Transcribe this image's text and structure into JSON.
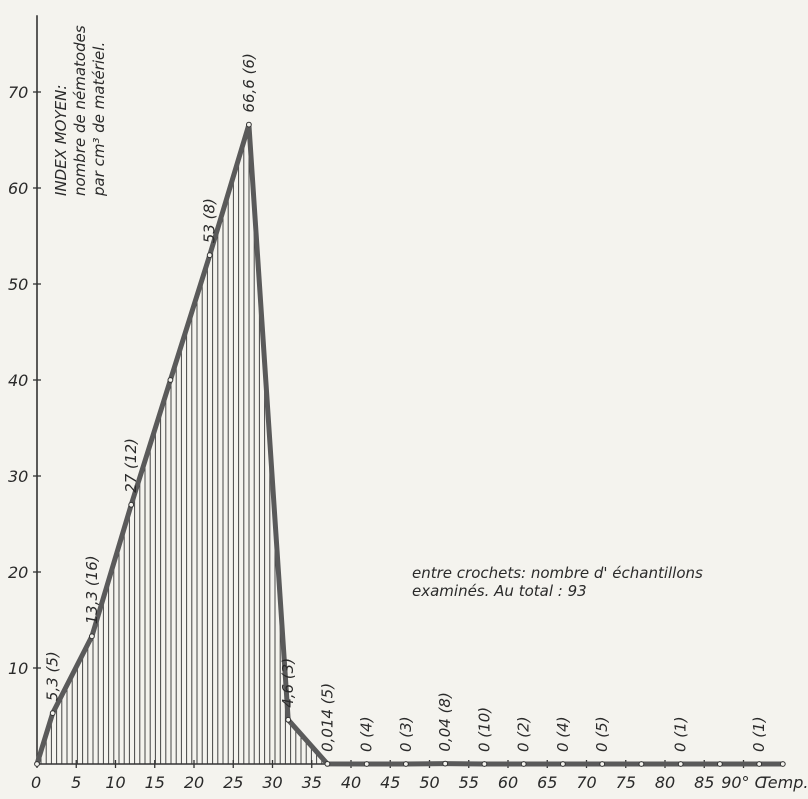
{
  "chart_data": {
    "type": "area",
    "ylabel_lines": [
      "INDEX MOYEN:",
      "nombre de nématodes",
      "par cm³ de matériel."
    ],
    "xlabel": "Temp.",
    "x_tick_labels": [
      "0",
      "5",
      "10",
      "15",
      "20",
      "25",
      "30",
      "35",
      "40",
      "45",
      "50",
      "55",
      "60",
      "65",
      "70",
      "75",
      "80",
      "85",
      "90° C"
    ],
    "y_tick_labels": [
      "10",
      "20",
      "30",
      "40",
      "50",
      "60",
      "70"
    ],
    "xlim": [
      0,
      95
    ],
    "ylim": [
      0,
      78
    ],
    "x": [
      0,
      2,
      7,
      12,
      17,
      22,
      27,
      32,
      37,
      42,
      47,
      52,
      57,
      62,
      67,
      72,
      77,
      82,
      87,
      92,
      95
    ],
    "y": [
      0,
      5.3,
      13.3,
      27,
      40,
      53,
      66.6,
      4.6,
      0.014,
      0,
      0,
      0.04,
      0,
      0,
      0,
      0,
      0,
      0,
      0,
      0,
      0
    ],
    "hatched_until_x": 37,
    "annotations": [
      {
        "text": "5,3 (5)",
        "x": 2,
        "y": 5.3
      },
      {
        "text": "13,3 (16)",
        "x": 7,
        "y": 13.3
      },
      {
        "text": "27 (12)",
        "x": 12,
        "y": 27
      },
      {
        "text": "53 (8)",
        "x": 22,
        "y": 53
      },
      {
        "text": "66,6 (6)",
        "x": 27,
        "y": 66.6
      },
      {
        "text": "4,6 (3)",
        "x": 32,
        "y": 4.6
      },
      {
        "text": "0,014 (5)",
        "x": 37,
        "y": 0.014
      },
      {
        "text": "0 (4)",
        "x": 42,
        "y": 0
      },
      {
        "text": "0 (3)",
        "x": 47,
        "y": 0
      },
      {
        "text": "0,04 (8)",
        "x": 52,
        "y": 0.04
      },
      {
        "text": "0 (10)",
        "x": 57,
        "y": 0
      },
      {
        "text": "0 (2)",
        "x": 62,
        "y": 0
      },
      {
        "text": "0 (4)",
        "x": 67,
        "y": 0
      },
      {
        "text": "0 (5)",
        "x": 72,
        "y": 0
      },
      {
        "text": "0 (1)",
        "x": 82,
        "y": 0
      },
      {
        "text": "0 (1)",
        "x": 92,
        "y": 0
      }
    ],
    "note_lines": [
      "entre crochets: nombre d' échantillons",
      "examinés.       Au total : 93"
    ],
    "grid": false,
    "colors": {
      "line": "#5a5a5a",
      "hatch": "#444444",
      "axis": "#333333"
    }
  }
}
